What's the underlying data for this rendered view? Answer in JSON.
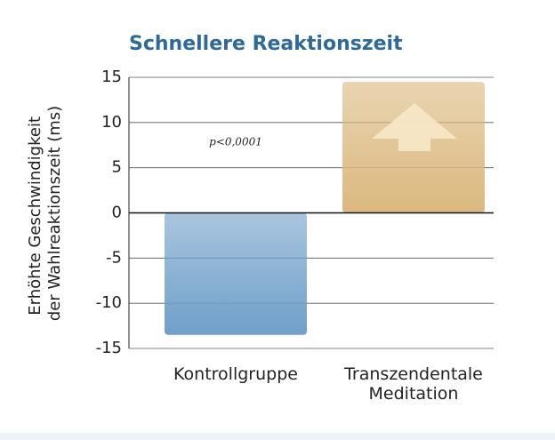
{
  "chart_data": {
    "type": "bar",
    "title": "Schnellere Reaktionszeit",
    "ylabel": [
      "Erhöhte Geschwindigkeit",
      "der Wahlreaktionszeit (ms)"
    ],
    "categories": [
      "Kontrollgruppe",
      "Transzendentale Meditation"
    ],
    "values": [
      -13.5,
      14.5
    ],
    "colors": [
      "#6f9fc9",
      "#dbb87e"
    ],
    "annotation": "p<0,0001",
    "ylim": [
      -15,
      15
    ],
    "yticks": [
      -15,
      -10,
      -5,
      0,
      5,
      10,
      15
    ],
    "grid": true
  }
}
